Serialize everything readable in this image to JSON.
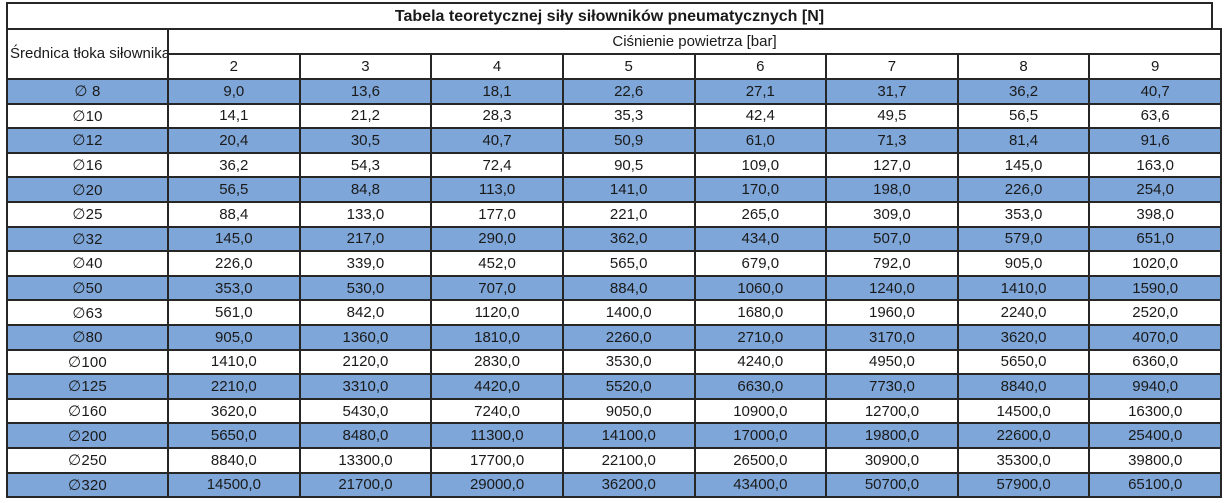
{
  "table": {
    "title": "Tabela teoretycznej siły siłowników pneumatycznych [N]",
    "diameter_header": "Średnica tłoka siłownika",
    "pressure_header": "Ciśnienie powietrza [bar]",
    "pressures": [
      "2",
      "3",
      "4",
      "5",
      "6",
      "7",
      "8",
      "9"
    ],
    "rows": [
      {
        "diameter": "∅ 8",
        "highlight": true,
        "values": [
          "9,0",
          "13,6",
          "18,1",
          "22,6",
          "27,1",
          "31,7",
          "36,2",
          "40,7"
        ]
      },
      {
        "diameter": "∅10",
        "highlight": false,
        "values": [
          "14,1",
          "21,2",
          "28,3",
          "35,3",
          "42,4",
          "49,5",
          "56,5",
          "63,6"
        ]
      },
      {
        "diameter": "∅12",
        "highlight": true,
        "values": [
          "20,4",
          "30,5",
          "40,7",
          "50,9",
          "61,0",
          "71,3",
          "81,4",
          "91,6"
        ]
      },
      {
        "diameter": "∅16",
        "highlight": false,
        "values": [
          "36,2",
          "54,3",
          "72,4",
          "90,5",
          "109,0",
          "127,0",
          "145,0",
          "163,0"
        ]
      },
      {
        "diameter": "∅20",
        "highlight": true,
        "values": [
          "56,5",
          "84,8",
          "113,0",
          "141,0",
          "170,0",
          "198,0",
          "226,0",
          "254,0"
        ]
      },
      {
        "diameter": "∅25",
        "highlight": false,
        "values": [
          "88,4",
          "133,0",
          "177,0",
          "221,0",
          "265,0",
          "309,0",
          "353,0",
          "398,0"
        ]
      },
      {
        "diameter": "∅32",
        "highlight": true,
        "values": [
          "145,0",
          "217,0",
          "290,0",
          "362,0",
          "434,0",
          "507,0",
          "579,0",
          "651,0"
        ]
      },
      {
        "diameter": "∅40",
        "highlight": false,
        "values": [
          "226,0",
          "339,0",
          "452,0",
          "565,0",
          "679,0",
          "792,0",
          "905,0",
          "1020,0"
        ]
      },
      {
        "diameter": "∅50",
        "highlight": true,
        "values": [
          "353,0",
          "530,0",
          "707,0",
          "884,0",
          "1060,0",
          "1240,0",
          "1410,0",
          "1590,0"
        ]
      },
      {
        "diameter": "∅63",
        "highlight": false,
        "values": [
          "561,0",
          "842,0",
          "1120,0",
          "1400,0",
          "1680,0",
          "1960,0",
          "2240,0",
          "2520,0"
        ]
      },
      {
        "diameter": "∅80",
        "highlight": true,
        "values": [
          "905,0",
          "1360,0",
          "1810,0",
          "2260,0",
          "2710,0",
          "3170,0",
          "3620,0",
          "4070,0"
        ]
      },
      {
        "diameter": "∅100",
        "highlight": false,
        "values": [
          "1410,0",
          "2120,0",
          "2830,0",
          "3530,0",
          "4240,0",
          "4950,0",
          "5650,0",
          "6360,0"
        ]
      },
      {
        "diameter": "∅125",
        "highlight": true,
        "values": [
          "2210,0",
          "3310,0",
          "4420,0",
          "5520,0",
          "6630,0",
          "7730,0",
          "8840,0",
          "9940,0"
        ]
      },
      {
        "diameter": "∅160",
        "highlight": false,
        "values": [
          "3620,0",
          "5430,0",
          "7240,0",
          "9050,0",
          "10900,0",
          "12700,0",
          "14500,0",
          "16300,0"
        ]
      },
      {
        "diameter": "∅200",
        "highlight": true,
        "values": [
          "5650,0",
          "8480,0",
          "11300,0",
          "14100,0",
          "17000,0",
          "19800,0",
          "22600,0",
          "25400,0"
        ]
      },
      {
        "diameter": "∅250",
        "highlight": false,
        "values": [
          "8840,0",
          "13300,0",
          "17700,0",
          "22100,0",
          "26500,0",
          "30900,0",
          "35300,0",
          "39800,0"
        ]
      },
      {
        "diameter": "∅320",
        "highlight": true,
        "values": [
          "14500,0",
          "21700,0",
          "29000,0",
          "36200,0",
          "43400,0",
          "50700,0",
          "57900,0",
          "65100,0"
        ]
      }
    ],
    "colors": {
      "highlight_row": "#7EA6D8",
      "border": "#262626",
      "text": "#1a1a1a",
      "background": "#ffffff"
    }
  }
}
